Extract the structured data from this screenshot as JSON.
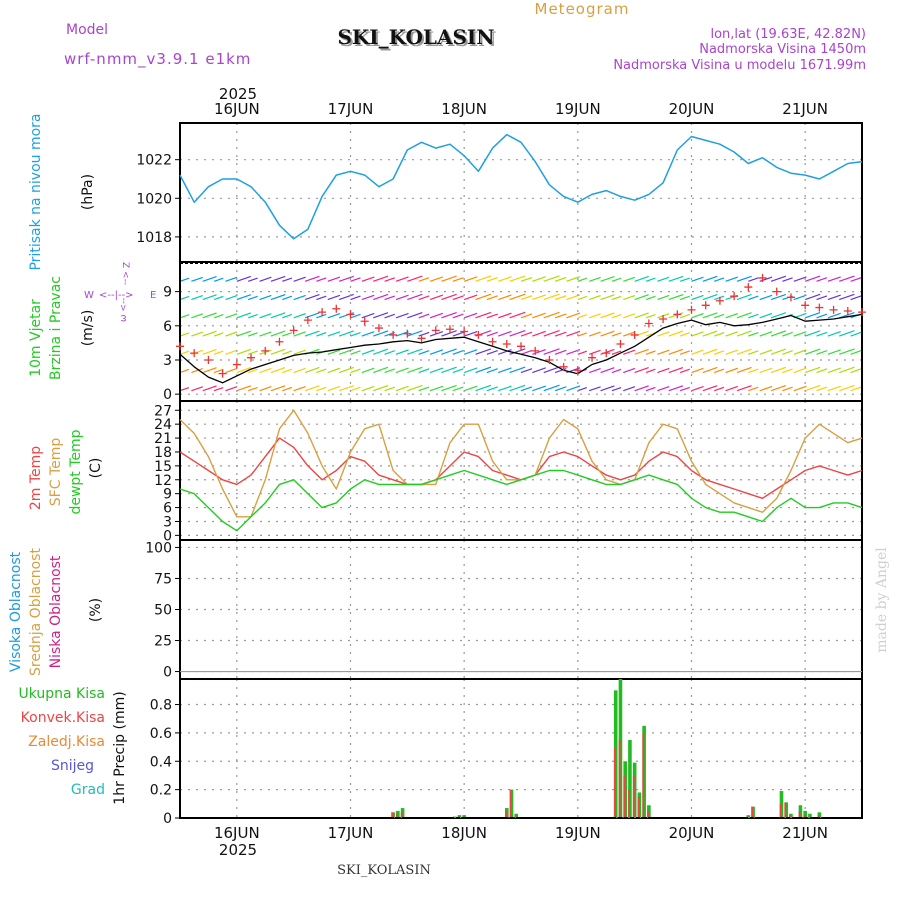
{
  "header": {
    "title": "SKI_KOLASIN",
    "subtitle": "Meteogram",
    "model_label": "Model",
    "model_name": "wrf-nmm_v3.9.1 e1km",
    "lonlat": "lon,lat (19.63E, 42.82N)",
    "elev": "Nadmorska Visina 1450m",
    "elev_model": "Nadmorska Visina u modelu 1671.99m",
    "year": "2025",
    "footer_station": "SKI_KOLASIN",
    "watermark": "made by Angel"
  },
  "colors": {
    "pressure": "#1fa0e0",
    "wind_speed": "#000000",
    "wind_gust": "#ee3333",
    "t2m": "#ee4444",
    "tsfc": "#d8a040",
    "dewpt": "#22cc22",
    "cloud_high": "#1e9ae0",
    "cloud_mid": "#d8a040",
    "cloud_low": "#cc2288",
    "precip_total": "#22bb22",
    "precip_conv": "#ee4444",
    "precip_frozen": "#ee8833",
    "precip_snow": "#5555dd",
    "precip_graupel": "#22bbbb",
    "label_violet": "#aa44cc",
    "label_subtitle": "#d8a040"
  },
  "chart_data": [
    {
      "type": "line",
      "panel": "pressure",
      "ylabel_lines": [
        "Pritisak na nivou mora",
        "(hPa)"
      ],
      "ylim": [
        1016.7,
        1023.9
      ],
      "yticks": [
        1018,
        1020,
        1022
      ],
      "x_days": [
        "16JUN",
        "17JUN",
        "18JUN",
        "19JUN",
        "20JUN",
        "21JUN"
      ],
      "x_hours": [
        0,
        3,
        6,
        9,
        12,
        15,
        18,
        21,
        24,
        27,
        30,
        33,
        36,
        39,
        42,
        45,
        48,
        51,
        54,
        57,
        60,
        63,
        66,
        69,
        72,
        75,
        78,
        81,
        84,
        87,
        90,
        93,
        96,
        99,
        102,
        105,
        108,
        111,
        114,
        117,
        120,
        123,
        126,
        129,
        132,
        135,
        138,
        141,
        144
      ],
      "grid": true,
      "series": [
        {
          "values": [
            1021.2,
            1019.8,
            1020.6,
            1021.0,
            1021.0,
            1020.6,
            1019.8,
            1018.6,
            1017.9,
            1018.4,
            1020.1,
            1021.2,
            1021.4,
            1021.2,
            1020.6,
            1021.0,
            1022.5,
            1022.9,
            1022.6,
            1022.8,
            1022.2,
            1021.4,
            1022.6,
            1023.3,
            1022.9,
            1021.9,
            1020.7,
            1020.1,
            1019.8,
            1020.2,
            1020.4,
            1020.1,
            1019.9,
            1020.2,
            1020.8,
            1022.5,
            1023.2,
            1023.0,
            1022.8,
            1022.4,
            1021.8,
            1022.1,
            1021.6,
            1021.3,
            1021.2,
            1021.0,
            1021.4,
            1021.8,
            1021.9
          ]
        }
      ]
    },
    {
      "type": "line",
      "panel": "wind",
      "ylabel_lines": [
        "10m Vjetar",
        "Brzina i Pravac",
        "(m/s)"
      ],
      "legend_arrows": [
        "W",
        "E",
        "Z",
        "ω"
      ],
      "ylim": [
        -0.6,
        11.6
      ],
      "yticks": [
        0,
        3,
        6,
        9
      ],
      "grid": true,
      "series": [
        {
          "name": "speed",
          "values": [
            3.5,
            2.4,
            1.5,
            1.0,
            1.6,
            2.2,
            2.6,
            3.0,
            3.4,
            3.6,
            3.7,
            3.9,
            4.1,
            4.3,
            4.4,
            4.6,
            4.7,
            4.5,
            4.8,
            4.9,
            5.0,
            4.6,
            4.2,
            3.8,
            3.5,
            3.2,
            2.8,
            2.1,
            1.8,
            2.6,
            3.0,
            3.6,
            4.2,
            5.0,
            5.8,
            6.2,
            6.5,
            6.1,
            6.3,
            6.0,
            6.1,
            6.3,
            6.6,
            6.9,
            6.4,
            6.5,
            6.6,
            6.8,
            7.0
          ]
        },
        {
          "name": "gust",
          "values": [
            4.2,
            3.6,
            3.0,
            1.8,
            2.6,
            3.2,
            3.8,
            4.6,
            5.6,
            6.5,
            7.2,
            7.5,
            7.0,
            6.4,
            5.8,
            5.2,
            5.3,
            4.9,
            5.6,
            5.7,
            5.5,
            5.2,
            4.6,
            4.4,
            4.2,
            3.8,
            3.0,
            2.4,
            2.1,
            3.2,
            3.6,
            4.4,
            5.2,
            6.2,
            6.6,
            7.0,
            7.4,
            7.8,
            8.2,
            8.6,
            9.4,
            10.2,
            9.0,
            8.5,
            7.8,
            7.6,
            7.4,
            7.3,
            7.2
          ]
        }
      ]
    },
    {
      "type": "line",
      "panel": "temperature",
      "ylabel_lines": [
        "2m Temp",
        "SFC Temp",
        "dewpt Temp",
        "(C)"
      ],
      "ylim": [
        -1,
        29
      ],
      "yticks": [
        0,
        3,
        6,
        9,
        12,
        15,
        18,
        21,
        24,
        27
      ],
      "grid": true,
      "series": [
        {
          "name": "2m Temp",
          "values": [
            18,
            16,
            14,
            12,
            11,
            13,
            17,
            21,
            19,
            15,
            12,
            14,
            17,
            16,
            13,
            12,
            11,
            11,
            12,
            15,
            18,
            17,
            14,
            13,
            12,
            13,
            17,
            18,
            17,
            15,
            13,
            12,
            13,
            16,
            18,
            17,
            14,
            12,
            11,
            10,
            9,
            8,
            10,
            12,
            14,
            15,
            14,
            13,
            14
          ]
        },
        {
          "name": "SFC Temp",
          "values": [
            25,
            22,
            17,
            10,
            4,
            4,
            12,
            23,
            27,
            22,
            15,
            10,
            18,
            23,
            24,
            14,
            11,
            11,
            11,
            20,
            24,
            24,
            16,
            12,
            12,
            13,
            21,
            25,
            23,
            16,
            12,
            11,
            12,
            20,
            24,
            23,
            16,
            11,
            9,
            7,
            6,
            5,
            8,
            14,
            21,
            24,
            22,
            20,
            21
          ]
        },
        {
          "name": "dewpt Temp",
          "values": [
            10,
            9,
            6,
            3,
            1,
            4,
            7,
            11,
            12,
            9,
            6,
            7,
            10,
            12,
            11,
            11,
            11,
            11,
            12,
            13,
            14,
            13,
            12,
            11,
            12,
            13,
            14,
            14,
            13,
            12,
            11,
            11,
            12,
            13,
            12,
            11,
            8,
            6,
            5,
            5,
            4,
            3,
            6,
            8,
            6,
            6,
            7,
            7,
            6
          ]
        }
      ]
    },
    {
      "type": "bar",
      "panel": "clouds",
      "ylabel_lines": [
        "Visoka Oblacnost",
        "Srednja Oblacnost",
        "Niska Oblacnost",
        "(%)"
      ],
      "ylim": [
        -6,
        106
      ],
      "yticks": [
        0,
        25,
        50,
        75,
        100
      ],
      "grid": true,
      "x_hours": [
        0,
        2,
        4,
        6,
        8,
        10,
        12,
        14,
        16,
        18,
        20,
        22,
        24,
        26,
        28,
        30,
        32,
        34,
        36,
        38,
        40,
        42,
        44,
        46,
        48,
        50,
        52,
        54,
        56,
        58,
        60,
        62,
        64,
        66,
        68,
        70,
        72,
        74,
        76,
        78,
        80,
        82,
        84,
        86,
        88,
        90,
        92,
        94,
        96,
        98,
        100,
        102,
        104,
        106,
        108,
        110,
        112,
        114,
        116,
        118,
        120,
        122,
        124,
        126,
        128,
        130,
        132,
        134,
        136,
        138,
        140,
        142,
        144
      ],
      "series": [
        {
          "name": "Visoka Oblacnost",
          "values": [
            0,
            0,
            0,
            0,
            0,
            0,
            0,
            0,
            0,
            0,
            0,
            0,
            0,
            0,
            0,
            0,
            0,
            0,
            0,
            0,
            0,
            0,
            0,
            0,
            0,
            0,
            0,
            0,
            0,
            0,
            0,
            0,
            0,
            0,
            0,
            0,
            0,
            0,
            0,
            0,
            0,
            0,
            0,
            0,
            0,
            0,
            0,
            0,
            0,
            0,
            0,
            0,
            0,
            0,
            0,
            0,
            0,
            0,
            0,
            0,
            0,
            0,
            0,
            0,
            0,
            0,
            0,
            0,
            0,
            0,
            0,
            0,
            0
          ]
        },
        {
          "name": "Srednja Oblacnost",
          "values": [
            0,
            0,
            0,
            0,
            0,
            0,
            0,
            0,
            0,
            0,
            0,
            0,
            0,
            0,
            0,
            0,
            0,
            0,
            0,
            0,
            0,
            0,
            0,
            0,
            0,
            0,
            0,
            0,
            0,
            0,
            0,
            0,
            0,
            0,
            0,
            0,
            0,
            0,
            0,
            0,
            0,
            0,
            0,
            0,
            0,
            0,
            0,
            0,
            0,
            0,
            0,
            0,
            0,
            0,
            0,
            0,
            0,
            0,
            0,
            0,
            0,
            0,
            0,
            0,
            0,
            0,
            0,
            0,
            0,
            0,
            0,
            0,
            0
          ]
        },
        {
          "name": "Niska Oblacnost",
          "values": [
            0,
            0,
            0,
            0,
            0,
            0,
            0,
            0,
            0,
            0,
            0,
            0,
            0,
            0,
            0,
            0,
            0,
            0,
            0,
            0,
            0,
            0,
            0,
            0,
            0,
            0,
            0,
            0,
            0,
            0,
            0,
            0,
            0,
            0,
            0,
            0,
            0,
            0,
            0,
            0,
            0,
            0,
            0,
            0,
            0,
            0,
            0,
            0,
            0,
            0,
            0,
            0,
            0,
            0,
            0,
            0,
            0,
            0,
            0,
            0,
            0,
            0,
            0,
            0,
            0,
            0,
            0,
            0,
            0,
            0,
            0,
            0,
            0
          ]
        }
      ]
    },
    {
      "type": "bar",
      "panel": "precip",
      "ylabel_lines": [
        "1hr Precip (mm)"
      ],
      "legend": [
        "Ukupna Kisa",
        "Konvek.Kisa",
        "Zaledj.Kisa",
        "Snijeg",
        "Grad"
      ],
      "ylim": [
        0,
        0.98
      ],
      "yticks": [
        0,
        0.2,
        0.4,
        0.6,
        0.8
      ],
      "grid": true,
      "bars": [
        {
          "h": 45.0,
          "total": 0.04,
          "conv": 0.04
        },
        {
          "h": 46.0,
          "total": 0.05,
          "conv": 0.03
        },
        {
          "h": 47.0,
          "total": 0.07,
          "conv": 0.04
        },
        {
          "h": 58.0,
          "total": 0.01,
          "conv": 0.0
        },
        {
          "h": 59.0,
          "total": 0.02,
          "conv": 0.01
        },
        {
          "h": 60.0,
          "total": 0.02,
          "conv": 0.01
        },
        {
          "h": 69.0,
          "total": 0.07,
          "conv": 0.05
        },
        {
          "h": 70.0,
          "total": 0.2,
          "conv": 0.2
        },
        {
          "h": 71.0,
          "total": 0.03,
          "conv": 0.02
        },
        {
          "h": 92.0,
          "total": 0.9,
          "conv": 0.5
        },
        {
          "h": 93.0,
          "total": 0.98,
          "conv": 0.55
        },
        {
          "h": 94.0,
          "total": 0.4,
          "conv": 0.3
        },
        {
          "h": 95.0,
          "total": 0.55,
          "conv": 0.2
        },
        {
          "h": 96.0,
          "total": 0.39,
          "conv": 0.3
        },
        {
          "h": 97.0,
          "total": 0.18,
          "conv": 0.15
        },
        {
          "h": 98.0,
          "total": 0.65,
          "conv": 0.6
        },
        {
          "h": 99.0,
          "total": 0.09,
          "conv": 0.05
        },
        {
          "h": 120.0,
          "total": 0.02,
          "conv": 0.01
        },
        {
          "h": 121.0,
          "total": 0.08,
          "conv": 0.08
        },
        {
          "h": 127.0,
          "total": 0.19,
          "conv": 0.1
        },
        {
          "h": 128.0,
          "total": 0.11,
          "conv": 0.11
        },
        {
          "h": 129.0,
          "total": 0.03,
          "conv": 0.02
        },
        {
          "h": 131.0,
          "total": 0.09,
          "conv": 0.05
        },
        {
          "h": 132.0,
          "total": 0.05,
          "conv": 0.02
        },
        {
          "h": 133.0,
          "total": 0.03,
          "conv": 0.01
        },
        {
          "h": 135.0,
          "total": 0.04,
          "conv": 0.02
        }
      ]
    }
  ]
}
